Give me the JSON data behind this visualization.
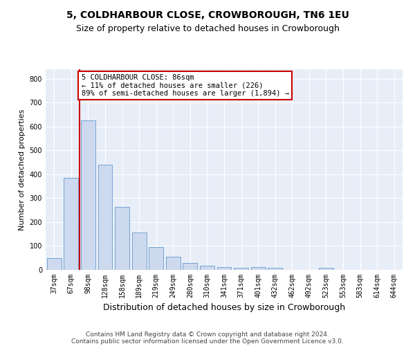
{
  "title": "5, COLDHARBOUR CLOSE, CROWBOROUGH, TN6 1EU",
  "subtitle": "Size of property relative to detached houses in Crowborough",
  "xlabel": "Distribution of detached houses by size in Crowborough",
  "ylabel": "Number of detached properties",
  "categories": [
    "37sqm",
    "67sqm",
    "98sqm",
    "128sqm",
    "158sqm",
    "189sqm",
    "219sqm",
    "249sqm",
    "280sqm",
    "310sqm",
    "341sqm",
    "371sqm",
    "401sqm",
    "432sqm",
    "462sqm",
    "492sqm",
    "523sqm",
    "553sqm",
    "583sqm",
    "614sqm",
    "644sqm"
  ],
  "values": [
    50,
    385,
    625,
    440,
    265,
    155,
    95,
    55,
    28,
    18,
    12,
    10,
    12,
    10,
    0,
    0,
    8,
    0,
    0,
    0,
    0
  ],
  "bar_color": "#ccd9ee",
  "bar_edge_color": "#6699cc",
  "vline_x": 1.5,
  "vline_color": "#cc0000",
  "annotation_text": "5 COLDHARBOUR CLOSE: 86sqm\n← 11% of detached houses are smaller (226)\n89% of semi-detached houses are larger (1,894) →",
  "annotation_box_color": "#ffffff",
  "annotation_box_edge": "#cc0000",
  "ylim": [
    0,
    840
  ],
  "yticks": [
    0,
    100,
    200,
    300,
    400,
    500,
    600,
    700,
    800
  ],
  "footer1": "Contains HM Land Registry data © Crown copyright and database right 2024.",
  "footer2": "Contains public sector information licensed under the Open Government Licence v3.0.",
  "fig_bg_color": "#ffffff",
  "plot_bg_color": "#e8eef8",
  "title_fontsize": 10,
  "subtitle_fontsize": 9,
  "xlabel_fontsize": 9,
  "ylabel_fontsize": 8,
  "tick_fontsize": 7,
  "footer_fontsize": 6.5,
  "annotation_fontsize": 7.5
}
